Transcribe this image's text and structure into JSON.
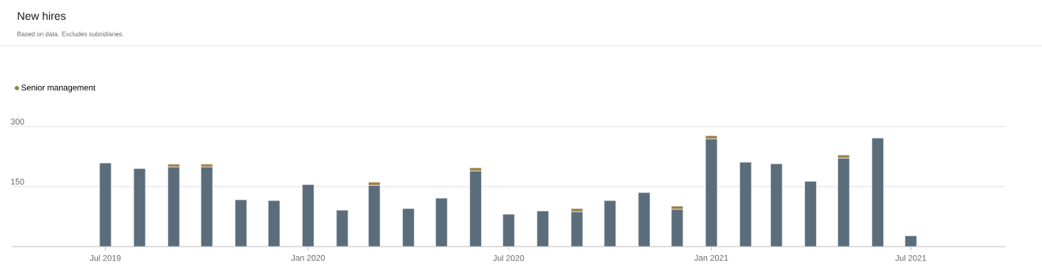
{
  "chart_data": {
    "type": "bar",
    "title": "New hires",
    "subtitle": "Based on data. Excludes subsidiaries.",
    "x": [
      "2019-07",
      "2019-08",
      "2019-09",
      "2019-10",
      "2019-11",
      "2019-12",
      "2020-01",
      "2020-02",
      "2020-03",
      "2020-04",
      "2020-05",
      "2020-06",
      "2020-07",
      "2020-08",
      "2020-09",
      "2020-10",
      "2020-11",
      "2020-12",
      "2021-01",
      "2021-02",
      "2021-03",
      "2021-04",
      "2021-05",
      "2021-06",
      "2021-07"
    ],
    "stacked": true,
    "series": [
      {
        "color": "#5b6d7b",
        "values": [
          209,
          195,
          199,
          199,
          117,
          115,
          155,
          91,
          153,
          95,
          121,
          189,
          81,
          89,
          87,
          115,
          135,
          93,
          269,
          211,
          207,
          163,
          221,
          271,
          27
        ]
      },
      {
        "name": "Senior management",
        "color": "#9b7e45",
        "values": [
          null,
          null,
          7,
          7,
          null,
          null,
          null,
          null,
          8,
          null,
          null,
          8,
          null,
          null,
          8,
          null,
          null,
          8,
          8,
          null,
          null,
          null,
          8,
          null,
          null
        ]
      }
    ],
    "xlim": [
      "2019-04-07",
      "2021-09-25"
    ],
    "xticks": [
      {
        "value": "2019-07",
        "label": "Jul 2019"
      },
      {
        "value": "2020-01",
        "label": "Jan 2020"
      },
      {
        "value": "2020-07",
        "label": "Jul 2020"
      },
      {
        "value": "2021-01",
        "label": "Jan 2021"
      },
      {
        "value": "2021-07",
        "label": "Jul 2021"
      }
    ],
    "ylim": [
      0,
      300
    ],
    "yticks": [
      150,
      300
    ],
    "grid": "y",
    "legend": "top left"
  }
}
